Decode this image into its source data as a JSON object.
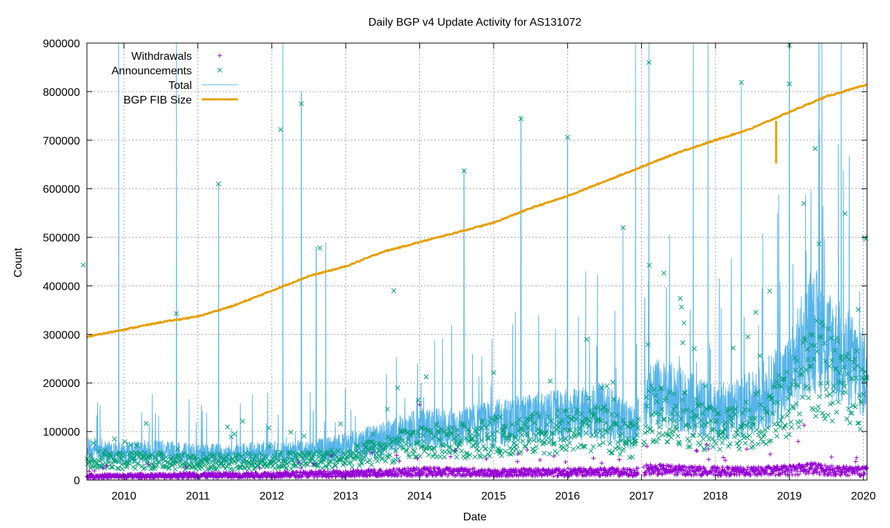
{
  "chart_data": {
    "type": "line",
    "title": "Daily BGP v4 Update Activity for AS131072",
    "xlabel": "Date",
    "ylabel": "Count",
    "xlim": [
      2009.5,
      2020.05
    ],
    "ylim": [
      0,
      900000
    ],
    "x_ticks": [
      2010,
      2011,
      2012,
      2013,
      2014,
      2015,
      2016,
      2017,
      2018,
      2019,
      2020
    ],
    "y_ticks": [
      0,
      100000,
      200000,
      300000,
      400000,
      500000,
      600000,
      700000,
      800000,
      900000
    ],
    "grid": true,
    "legend_position": "top-left",
    "legend": [
      "Withdrawals",
      "Announcements",
      "Total",
      "BGP FIB Size"
    ],
    "colors": {
      "withdrawals": "#9400d3",
      "announcements": "#009e73",
      "total": "#56b4e9",
      "fib": "#e69f00"
    },
    "series": [
      {
        "name": "BGP FIB Size",
        "x": [
          2009.5,
          2010.0,
          2010.5,
          2011.0,
          2011.5,
          2012.0,
          2012.5,
          2013.0,
          2013.5,
          2014.0,
          2014.5,
          2015.0,
          2015.5,
          2016.0,
          2016.5,
          2017.0,
          2017.5,
          2018.0,
          2018.5,
          2019.0,
          2019.5,
          2020.0
        ],
        "values": [
          295000,
          310000,
          325000,
          337000,
          360000,
          390000,
          420000,
          440000,
          470000,
          490000,
          510000,
          530000,
          560000,
          585000,
          615000,
          645000,
          675000,
          700000,
          725000,
          758000,
          790000,
          812000
        ]
      },
      {
        "name": "Total",
        "x": [
          2009.5,
          2010.0,
          2010.5,
          2011.0,
          2011.5,
          2012.0,
          2012.5,
          2013.0,
          2013.5,
          2014.0,
          2014.5,
          2015.0,
          2015.5,
          2016.0,
          2016.5,
          2016.9,
          2017.1,
          2017.5,
          2018.0,
          2018.5,
          2019.0,
          2019.3,
          2019.5,
          2020.0
        ],
        "values": [
          60000,
          55000,
          55000,
          50000,
          50000,
          55000,
          55000,
          65000,
          80000,
          100000,
          100000,
          110000,
          120000,
          125000,
          135000,
          100000,
          170000,
          160000,
          130000,
          150000,
          200000,
          300000,
          270000,
          210000
        ]
      },
      {
        "name": "Announcements",
        "x": [
          2009.5,
          2010.0,
          2010.5,
          2011.0,
          2011.5,
          2012.0,
          2012.5,
          2013.0,
          2013.5,
          2014.0,
          2014.5,
          2015.0,
          2015.5,
          2016.0,
          2016.5,
          2016.9,
          2017.1,
          2017.5,
          2018.0,
          2018.5,
          2019.0,
          2019.3,
          2019.5,
          2020.0
        ],
        "values": [
          45000,
          40000,
          40000,
          38000,
          38000,
          40000,
          42000,
          45000,
          60000,
          80000,
          80000,
          90000,
          95000,
          100000,
          105000,
          80000,
          140000,
          130000,
          100000,
          120000,
          160000,
          240000,
          220000,
          180000
        ]
      },
      {
        "name": "Withdrawals",
        "x": [
          2009.5,
          2010.0,
          2010.5,
          2011.0,
          2011.5,
          2012.0,
          2012.5,
          2013.0,
          2013.5,
          2014.0,
          2014.5,
          2015.0,
          2015.5,
          2016.0,
          2016.5,
          2016.9,
          2017.1,
          2017.5,
          2018.0,
          2018.5,
          2019.0,
          2019.3,
          2019.5,
          2020.0
        ],
        "values": [
          8000,
          8000,
          9000,
          10000,
          10000,
          11000,
          12000,
          13000,
          15000,
          17000,
          17000,
          15000,
          16000,
          16000,
          17000,
          15000,
          22000,
          20000,
          18000,
          18000,
          20000,
          25000,
          20000,
          18000
        ]
      }
    ],
    "spikes": {
      "total": [
        {
          "x": 2009.93,
          "y": 900000
        },
        {
          "x": 2010.71,
          "y": 900000
        },
        {
          "x": 2011.28,
          "y": 610000
        },
        {
          "x": 2012.15,
          "y": 900000
        },
        {
          "x": 2012.4,
          "y": 800000
        },
        {
          "x": 2012.6,
          "y": 480000
        },
        {
          "x": 2012.73,
          "y": 490000
        },
        {
          "x": 2014.6,
          "y": 640000
        },
        {
          "x": 2015.37,
          "y": 750000
        },
        {
          "x": 2016.0,
          "y": 705000
        },
        {
          "x": 2016.75,
          "y": 520000
        },
        {
          "x": 2016.92,
          "y": 900000
        },
        {
          "x": 2017.1,
          "y": 900000
        },
        {
          "x": 2017.7,
          "y": 900000
        },
        {
          "x": 2017.9,
          "y": 900000
        },
        {
          "x": 2018.35,
          "y": 820000
        },
        {
          "x": 2018.84,
          "y": 550000
        },
        {
          "x": 2019.0,
          "y": 900000
        },
        {
          "x": 2019.4,
          "y": 900000
        },
        {
          "x": 2019.7,
          "y": 900000
        }
      ],
      "announcements": [
        {
          "x": 2009.45,
          "y": 443000
        },
        {
          "x": 2010.71,
          "y": 343000
        },
        {
          "x": 2011.28,
          "y": 610000
        },
        {
          "x": 2012.12,
          "y": 722000
        },
        {
          "x": 2012.4,
          "y": 775000
        },
        {
          "x": 2012.65,
          "y": 478000
        },
        {
          "x": 2013.65,
          "y": 390000
        },
        {
          "x": 2014.6,
          "y": 637000
        },
        {
          "x": 2015.37,
          "y": 744000
        },
        {
          "x": 2016.0,
          "y": 706000
        },
        {
          "x": 2016.75,
          "y": 520000
        },
        {
          "x": 2017.1,
          "y": 860000
        },
        {
          "x": 2018.35,
          "y": 819000
        },
        {
          "x": 2019.0,
          "y": 896000
        },
        {
          "x": 2019.0,
          "y": 816000
        }
      ],
      "withdrawals": [
        {
          "x": 2014.0,
          "y": 155000
        },
        {
          "x": 2019.2,
          "y": 113000
        },
        {
          "x": 2017.75,
          "y": 60000
        },
        {
          "x": 2016.35,
          "y": 45000
        },
        {
          "x": 2016.7,
          "y": 42000
        }
      ]
    }
  }
}
